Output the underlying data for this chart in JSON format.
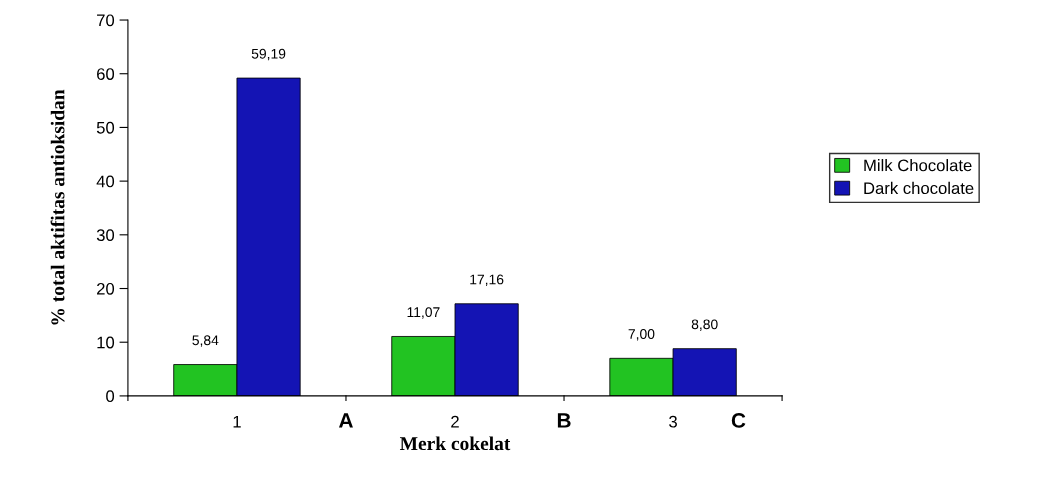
{
  "chart_data": {
    "type": "bar",
    "xlabel": "Merk cokelat",
    "ylabel": "% total aktifitas antioksidan",
    "categories": [
      "1",
      "2",
      "3"
    ],
    "series": [
      {
        "name": "Milk Chocolate",
        "color": "#22c322",
        "values": [
          5.84,
          11.07,
          7.0
        ],
        "value_labels": [
          "5,84",
          "11,07",
          "7,00"
        ]
      },
      {
        "name": "Dark chocolate",
        "color": "#1414b4",
        "values": [
          59.19,
          17.16,
          8.8
        ],
        "value_labels": [
          "59,19",
          "17,16",
          "8,80"
        ]
      }
    ],
    "ylim": [
      0,
      70
    ],
    "yticks": [
      0,
      10,
      20,
      30,
      40,
      50,
      60,
      70
    ],
    "grid": false,
    "legend": "right",
    "annotations": [
      "A",
      "B",
      "C"
    ]
  }
}
